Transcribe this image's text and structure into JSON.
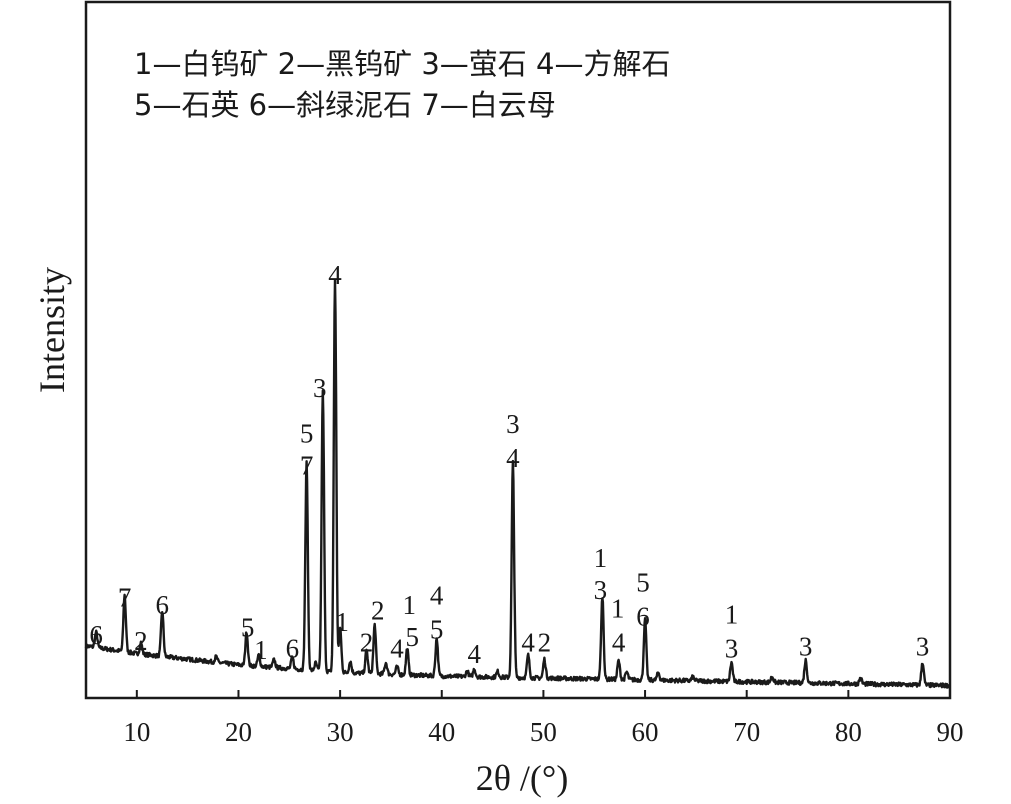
{
  "chart_data": {
    "type": "line",
    "xlabel": "2θ /(°)",
    "ylabel": "Intensity",
    "xlim": [
      5,
      90
    ],
    "ylim": [
      0,
      100
    ],
    "x_ticks": [
      10,
      20,
      30,
      40,
      50,
      60,
      70,
      80,
      90
    ],
    "legend": {
      "placement": "top-left",
      "lines": [
        "1—白钨矿  2—黑钨矿  3—萤石  4—方解石",
        "5—石英  6—斜绿泥石  7—白云母"
      ]
    },
    "baseline": [
      [
        5,
        13
      ],
      [
        10,
        11
      ],
      [
        20,
        8
      ],
      [
        30,
        6
      ],
      [
        40,
        5
      ],
      [
        50,
        4.5
      ],
      [
        60,
        4
      ],
      [
        70,
        3.5
      ],
      [
        80,
        3
      ],
      [
        90,
        2.5
      ]
    ],
    "peaks": [
      {
        "x": 6.0,
        "y": 4
      },
      {
        "x": 8.8,
        "y": 15
      },
      {
        "x": 10.4,
        "y": 3
      },
      {
        "x": 12.5,
        "y": 12
      },
      {
        "x": 17.8,
        "y": 1.5
      },
      {
        "x": 20.8,
        "y": 9
      },
      {
        "x": 22.0,
        "y": 3
      },
      {
        "x": 23.5,
        "y": 2
      },
      {
        "x": 25.3,
        "y": 3
      },
      {
        "x": 26.7,
        "y": 55
      },
      {
        "x": 27.6,
        "y": 2
      },
      {
        "x": 28.3,
        "y": 74
      },
      {
        "x": 29.5,
        "y": 104
      },
      {
        "x": 30.0,
        "y": 12
      },
      {
        "x": 31.0,
        "y": 3
      },
      {
        "x": 32.6,
        "y": 6
      },
      {
        "x": 33.4,
        "y": 13
      },
      {
        "x": 34.5,
        "y": 3
      },
      {
        "x": 35.6,
        "y": 2
      },
      {
        "x": 36.6,
        "y": 7
      },
      {
        "x": 39.5,
        "y": 10
      },
      {
        "x": 42.5,
        "y": 1.5
      },
      {
        "x": 43.2,
        "y": 2
      },
      {
        "x": 45.5,
        "y": 1.5
      },
      {
        "x": 47.0,
        "y": 57
      },
      {
        "x": 48.5,
        "y": 6
      },
      {
        "x": 50.1,
        "y": 5
      },
      {
        "x": 55.8,
        "y": 22
      },
      {
        "x": 57.4,
        "y": 5
      },
      {
        "x": 58.2,
        "y": 2
      },
      {
        "x": 60.0,
        "y": 16
      },
      {
        "x": 61.3,
        "y": 2
      },
      {
        "x": 64.7,
        "y": 1
      },
      {
        "x": 68.5,
        "y": 5
      },
      {
        "x": 72.5,
        "y": 1.5
      },
      {
        "x": 75.8,
        "y": 6
      },
      {
        "x": 81.2,
        "y": 1.5
      },
      {
        "x": 87.3,
        "y": 6
      }
    ],
    "peak_labels": [
      {
        "x": 6.0,
        "y": 13.5,
        "text": "6"
      },
      {
        "x": 8.8,
        "y": 23.5,
        "text": "7"
      },
      {
        "x": 10.4,
        "y": 12,
        "text": "2"
      },
      {
        "x": 12.5,
        "y": 21.5,
        "text": "6"
      },
      {
        "x": 20.9,
        "y": 15.5,
        "text": "5"
      },
      {
        "x": 22.2,
        "y": 9.5,
        "text": "1"
      },
      {
        "x": 25.3,
        "y": 10,
        "text": "6"
      },
      {
        "x": 26.7,
        "y": 58.5,
        "text": "7"
      },
      {
        "x": 26.7,
        "y": 67,
        "text": "5"
      },
      {
        "x": 28.0,
        "y": 79,
        "text": "3"
      },
      {
        "x": 29.5,
        "y": 109,
        "text": "4"
      },
      {
        "x": 30.2,
        "y": 17,
        "text": "1"
      },
      {
        "x": 32.6,
        "y": 11.5,
        "text": "2"
      },
      {
        "x": 33.7,
        "y": 20,
        "text": "2"
      },
      {
        "x": 35.6,
        "y": 10,
        "text": "4"
      },
      {
        "x": 36.8,
        "y": 21.5,
        "text": "1"
      },
      {
        "x": 37.1,
        "y": 13,
        "text": "5"
      },
      {
        "x": 39.5,
        "y": 24,
        "text": "4"
      },
      {
        "x": 39.5,
        "y": 15,
        "text": "5"
      },
      {
        "x": 43.2,
        "y": 8.5,
        "text": "4"
      },
      {
        "x": 47.0,
        "y": 69.5,
        "text": "3"
      },
      {
        "x": 47.0,
        "y": 60.5,
        "text": "4"
      },
      {
        "x": 48.5,
        "y": 11.5,
        "text": "4"
      },
      {
        "x": 50.1,
        "y": 11.5,
        "text": "2"
      },
      {
        "x": 55.6,
        "y": 34,
        "text": "1"
      },
      {
        "x": 55.6,
        "y": 25.5,
        "text": "3"
      },
      {
        "x": 57.3,
        "y": 20.5,
        "text": "1"
      },
      {
        "x": 57.4,
        "y": 11.5,
        "text": "4"
      },
      {
        "x": 59.8,
        "y": 27.5,
        "text": "5"
      },
      {
        "x": 59.8,
        "y": 18.5,
        "text": "6"
      },
      {
        "x": 68.5,
        "y": 19,
        "text": "1"
      },
      {
        "x": 68.5,
        "y": 10,
        "text": "3"
      },
      {
        "x": 75.8,
        "y": 10.5,
        "text": "3"
      },
      {
        "x": 87.3,
        "y": 10.5,
        "text": "3"
      }
    ],
    "line_color": "#1a1a1a",
    "grid": false
  }
}
